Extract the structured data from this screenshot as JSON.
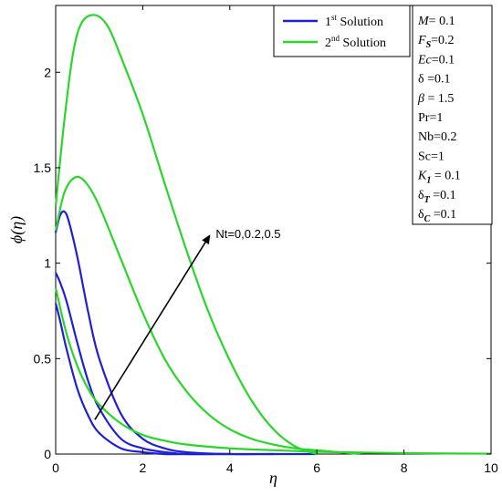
{
  "chart_data": {
    "type": "line",
    "title": "",
    "xlabel": "η",
    "ylabel": "ϕ(η)",
    "xlim": [
      0,
      10
    ],
    "ylim": [
      0,
      2.35
    ],
    "x_ticks": [
      0,
      2,
      4,
      6,
      8,
      10
    ],
    "y_ticks": [
      0,
      0.5,
      1,
      1.5,
      2
    ],
    "y_tick_labels": [
      "0",
      "0.5",
      "1",
      "1.5",
      "2"
    ],
    "grid": false,
    "legend_position": "top-right",
    "legend": [
      {
        "base": "1",
        "sup": "st",
        "rest": " Solution",
        "color": "#1f1fd6"
      },
      {
        "base": "2",
        "sup": "nd",
        "rest": " Solution",
        "color": "#2bd62b"
      }
    ],
    "parameters": [
      {
        "main": "M",
        "sub": "",
        "value": "= 0.1"
      },
      {
        "main": "F",
        "sub": "S",
        "value": "=0.2"
      },
      {
        "main": "Ec",
        "sub": "",
        "value": "=0.1"
      },
      {
        "main": "δ",
        "sub": "",
        "value": " =0.1"
      },
      {
        "main": "β",
        "sub": "",
        "value": " = 1.5"
      },
      {
        "main": "Pr",
        "sub": "",
        "value": "=1"
      },
      {
        "main": "Nb",
        "sub": "",
        "value": "=0.2"
      },
      {
        "main": "Sc",
        "sub": "",
        "value": "=1"
      },
      {
        "main": "K",
        "sub": "1",
        "value": " = 0.1"
      },
      {
        "main": "δ",
        "sub": "T",
        "value": " =0.1"
      },
      {
        "main": "δ",
        "sub": "C",
        "value": " =0.1"
      }
    ],
    "annotation": {
      "text": "Nt=0,0.2,0.5",
      "arrow_from": [
        0.9,
        0.18
      ],
      "arrow_to": [
        3.55,
        1.15
      ]
    },
    "series": [
      {
        "solution": 1,
        "color": "#1f1fd6",
        "x": [
          0,
          0.1,
          0.2,
          0.3,
          0.5,
          0.75,
          1,
          1.5,
          2,
          2.5,
          3,
          4,
          5,
          6
        ],
        "y": [
          1.16,
          1.25,
          1.27,
          1.22,
          1.03,
          0.74,
          0.5,
          0.21,
          0.08,
          0.03,
          0.01,
          0,
          0,
          0
        ]
      },
      {
        "solution": 1,
        "color": "#1f1fd6",
        "x": [
          0,
          0.1,
          0.25,
          0.5,
          0.75,
          1,
          1.5,
          2,
          2.5,
          3,
          4,
          5
        ],
        "y": [
          0.95,
          0.9,
          0.8,
          0.58,
          0.38,
          0.24,
          0.08,
          0.03,
          0.01,
          0,
          0,
          0
        ]
      },
      {
        "solution": 1,
        "color": "#1f1fd6",
        "x": [
          0,
          0.1,
          0.25,
          0.5,
          0.75,
          1,
          1.5,
          2,
          2.5,
          3,
          4
        ],
        "y": [
          0.79,
          0.7,
          0.55,
          0.34,
          0.2,
          0.11,
          0.03,
          0.01,
          0,
          0,
          0
        ]
      },
      {
        "solution": 2,
        "color": "#2bd62b",
        "x": [
          0,
          0.2,
          0.4,
          0.6,
          0.9,
          1.2,
          1.5,
          2,
          2.5,
          3,
          3.5,
          4,
          4.5,
          5,
          5.5,
          6
        ],
        "y": [
          1.3,
          1.75,
          2.1,
          2.26,
          2.3,
          2.24,
          2.08,
          1.78,
          1.42,
          1.07,
          0.75,
          0.49,
          0.28,
          0.13,
          0.04,
          0
        ]
      },
      {
        "solution": 2,
        "color": "#2bd62b",
        "x": [
          0,
          0.2,
          0.45,
          0.7,
          1,
          1.5,
          2,
          2.5,
          3,
          3.5,
          4,
          4.5,
          5,
          5.5,
          6,
          6.5,
          7
        ],
        "y": [
          1.17,
          1.37,
          1.45,
          1.42,
          1.3,
          1.02,
          0.74,
          0.5,
          0.33,
          0.21,
          0.13,
          0.08,
          0.05,
          0.03,
          0.02,
          0.01,
          0
        ]
      },
      {
        "solution": 2,
        "color": "#2bd62b",
        "x": [
          0,
          0.25,
          0.5,
          0.75,
          1,
          1.5,
          2,
          2.5,
          3,
          4,
          5,
          6,
          7,
          8,
          9,
          10
        ],
        "y": [
          0.87,
          0.63,
          0.46,
          0.34,
          0.26,
          0.16,
          0.1,
          0.07,
          0.05,
          0.03,
          0.02,
          0.012,
          0.008,
          0.005,
          0.003,
          0.002
        ]
      }
    ]
  }
}
